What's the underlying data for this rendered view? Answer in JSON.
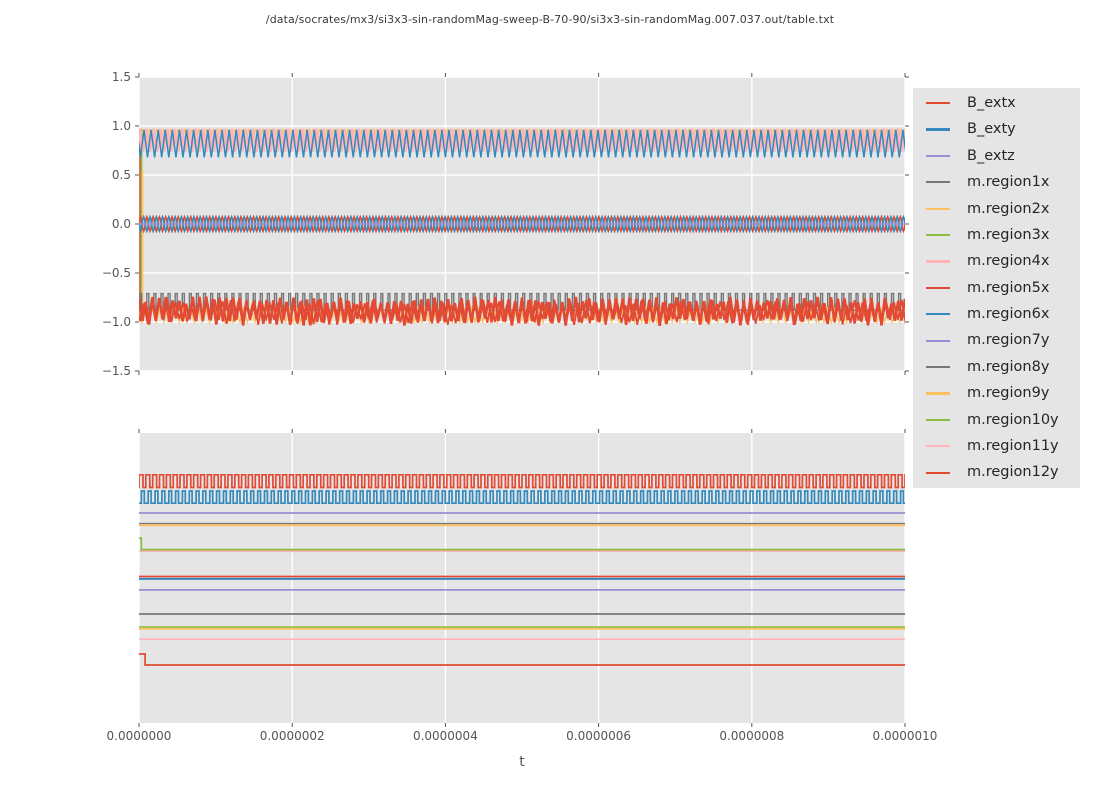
{
  "figure": {
    "background": "#ffffff",
    "axes_background": "#e5e5e5",
    "grid_color": "#ffffff",
    "tick_color": "#555555",
    "tick_label_color": "#555555",
    "title_color": "#3a3a3a"
  },
  "chart_data": {
    "type": "line",
    "title": "/data/socrates/mx3/si3x3-sin-randomMag-sweep-B-70-90/si3x3-sin-randomMag.007.037.out/table.txt",
    "xlabel": "t",
    "x_unit": "s",
    "x_range": [
      0,
      1e-06
    ],
    "x_tick_labels": [
      "0.0000000",
      "0.0000002",
      "0.0000004",
      "0.0000006",
      "0.0000008",
      "0.0000010"
    ],
    "x_tick_positions": [
      0,
      0.2,
      0.4,
      0.6,
      0.8,
      1.0
    ],
    "grid": "on",
    "legend": {
      "position": "right",
      "entries": [
        {
          "label": "B_extx",
          "color": "#E24A33"
        },
        {
          "label": "B_exty",
          "color": "#348ABD"
        },
        {
          "label": "B_extz",
          "color": "#988ED5"
        },
        {
          "label": "m.region1x",
          "color": "#777777"
        },
        {
          "label": "m.region2x",
          "color": "#FBC15E"
        },
        {
          "label": "m.region3x",
          "color": "#8EBA42"
        },
        {
          "label": "m.region4x",
          "color": "#FFB5B8"
        },
        {
          "label": "m.region5x",
          "color": "#E24A33"
        },
        {
          "label": "m.region6x",
          "color": "#348ABD"
        },
        {
          "label": "m.region7y",
          "color": "#988ED5"
        },
        {
          "label": "m.region8y",
          "color": "#777777"
        },
        {
          "label": "m.region9y",
          "color": "#FBC15E"
        },
        {
          "label": "m.region10y",
          "color": "#8EBA42"
        },
        {
          "label": "m.region11y",
          "color": "#FFB5B8"
        },
        {
          "label": "m.region12y",
          "color": "#E24A33"
        }
      ]
    },
    "subplots": [
      {
        "id": "top-Bext-and-mx",
        "ylim": [
          -1.5,
          1.5
        ],
        "y_tick_labels": [
          "1.5",
          "1.0",
          "0.5",
          "0.0",
          "−0.5",
          "−1.0",
          "−1.5"
        ],
        "y_tick_values": [
          1.5,
          1.0,
          0.5,
          0.0,
          -0.5,
          -1.0,
          -1.5
        ],
        "grid_x": true,
        "grid_y": true,
        "description": "Three dense oscillation bands: pink/blue band near +0.85, B-field sines near 0, red noisy band near -0.9; initial transient spikes at t=0",
        "series": [
          {
            "name": "init-transient-red",
            "type": "vline",
            "t": 0.0015,
            "v0": -0.97,
            "v1": 0.97,
            "color": "#E24A33",
            "width": 1.8
          },
          {
            "name": "init-transient-gray",
            "type": "vline",
            "t": 0.0024,
            "v0": -0.8,
            "v1": 0.12,
            "color": "#777777",
            "width": 1.4
          },
          {
            "name": "init-transient-green",
            "type": "vline",
            "t": 0.0032,
            "v0": -0.74,
            "v1": 0.97,
            "color": "#8EBA42",
            "width": 1.8
          },
          {
            "name": "init-transient-orange",
            "type": "vline",
            "t": 0.0046,
            "v0": -1.0,
            "v1": 0.55,
            "color": "#FBC15E",
            "width": 1.6
          },
          {
            "name": "m.region2x",
            "type": "triangle",
            "center": 0.9,
            "amp": 0.07,
            "cycles": 108,
            "phase": 0.5,
            "color": "#FBC15E",
            "width": 1.2
          },
          {
            "name": "m.region3x",
            "type": "triangle",
            "center": 0.885,
            "amp": 0.085,
            "cycles": 108,
            "phase": 0.1,
            "color": "#8EBA42",
            "width": 1.2
          },
          {
            "name": "m.region4x",
            "type": "triangle",
            "center": 0.855,
            "amp": 0.115,
            "cycles": 108,
            "phase": 0.0,
            "color": "#FFB5B8",
            "width": 3.4
          },
          {
            "name": "m.region6x",
            "type": "triangle",
            "center": 0.82,
            "amp": 0.14,
            "cycles": 108,
            "phase": 0.3,
            "color": "#348ABD",
            "width": 1.5
          },
          {
            "name": "B_extx",
            "type": "sine",
            "center": 0,
            "amp": 0.075,
            "cycles": 122,
            "phase": 0.0,
            "color": "#E24A33",
            "width": 1.6
          },
          {
            "name": "B_exty",
            "type": "sine",
            "center": 0,
            "amp": 0.075,
            "cycles": 122,
            "phase": 0.5,
            "color": "#348ABD",
            "width": 1.6
          },
          {
            "name": "B_extz",
            "type": "flat",
            "level": 0,
            "color": "#988ED5",
            "width": 1.8
          },
          {
            "name": "m.region1x",
            "type": "square",
            "high": -0.71,
            "low": -0.88,
            "cycles": 108,
            "duty": 0.28,
            "phase": 0.1,
            "color": "#777777",
            "width": 1.4
          },
          {
            "name": "mx-band-orange",
            "type": "triangle",
            "center": -0.93,
            "amp": 0.07,
            "cycles": 101,
            "phase": 0.2,
            "color": "#FBC15E",
            "width": 1.4
          },
          {
            "name": "m.region5x",
            "type": "triangle",
            "center": -0.89,
            "amp": 0.11,
            "cycles": 114,
            "phase": 0.0,
            "color": "#E24A33",
            "width": 2.6,
            "jitter": 0.35
          },
          {
            "name": "mx-band-noise",
            "type": "triangle",
            "center": -0.9,
            "amp": 0.1,
            "cycles": 97,
            "phase": 0.4,
            "color": "#E24A33",
            "width": 1.8,
            "jitter": 0.3
          }
        ]
      },
      {
        "id": "bottom-my-regions",
        "ylim": [
          0,
          1
        ],
        "y_tick_labels": [],
        "y_tick_values": [],
        "grid_x": true,
        "grid_y": false,
        "description": "Two square waves on top, stack of flat region traces below (normalized y, axis unlabeled)",
        "series": [
          {
            "name": "red-square-wave",
            "type": "square",
            "high": 0.856,
            "low": 0.812,
            "cycles": 112,
            "duty": 0.58,
            "phase": 0.0,
            "color": "#E24A33",
            "width": 1.7
          },
          {
            "name": "blue-square-wave",
            "type": "square",
            "high": 0.8,
            "low": 0.758,
            "cycles": 112,
            "duty": 0.42,
            "phase": 0.35,
            "color": "#348ABD",
            "width": 1.7
          },
          {
            "name": "purple-flat-upper",
            "type": "flat",
            "level": 0.724,
            "color": "#988ED5",
            "width": 1.8
          },
          {
            "name": "orange-flat-upper",
            "type": "flat",
            "level": 0.682,
            "color": "#FBC15E",
            "width": 2.0
          },
          {
            "name": "gray-flat-upper",
            "type": "flat",
            "level": 0.688,
            "color": "#777777",
            "width": 1.3
          },
          {
            "name": "pink-flat-under-green",
            "type": "flat",
            "level": 0.592,
            "color": "#FFB5B8",
            "width": 1.6
          },
          {
            "name": "green-step",
            "type": "step",
            "t": 0.003,
            "v0": 0.638,
            "v1": 0.598,
            "color": "#8EBA42",
            "width": 1.7
          },
          {
            "name": "blue-flat-mid",
            "type": "flat",
            "level": 0.497,
            "color": "#348ABD",
            "width": 2.0
          },
          {
            "name": "red-flat-mid",
            "type": "flat",
            "level": 0.505,
            "color": "#E24A33",
            "width": 1.7
          },
          {
            "name": "purple-flat-mid",
            "type": "flat",
            "level": 0.459,
            "color": "#988ED5",
            "width": 1.8
          },
          {
            "name": "gray-flat-lower",
            "type": "flat",
            "level": 0.376,
            "color": "#777777",
            "width": 1.8
          },
          {
            "name": "orange-flat-lower",
            "type": "flat",
            "level": 0.325,
            "color": "#FBC15E",
            "width": 2.0
          },
          {
            "name": "green-flat-lower",
            "type": "flat",
            "level": 0.331,
            "color": "#8EBA42",
            "width": 1.4
          },
          {
            "name": "pink-flat-lower",
            "type": "flat",
            "level": 0.289,
            "color": "#FFB5B8",
            "width": 1.6
          },
          {
            "name": "red-step",
            "type": "step",
            "t": 0.008,
            "v0": 0.238,
            "v1": 0.2,
            "color": "#E24A33",
            "width": 1.7
          }
        ]
      }
    ]
  }
}
